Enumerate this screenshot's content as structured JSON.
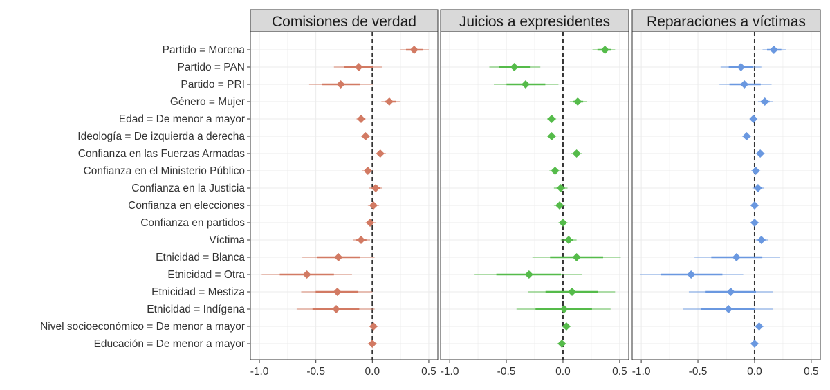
{
  "chart_data": {
    "type": "scatter",
    "subtype": "coefficient-plot-facetted",
    "title": "",
    "xlabel": "",
    "ylabel": "",
    "xlim": [
      -1.08,
      0.58
    ],
    "xticks": [
      -1.0,
      -0.5,
      0.0,
      0.5
    ],
    "xtick_labels": [
      "-1.0",
      "-0.5",
      "0.0",
      "0.5"
    ],
    "reference_line": 0,
    "grid": true,
    "categories": [
      "Partido = Morena",
      "Partido = PAN",
      "Partido = PRI",
      "Género = Mujer",
      "Edad = De menor a mayor",
      "Ideología = De izquierda a derecha",
      "Confianza en las Fuerzas Armadas",
      "Confianza en el Ministerio Público",
      "Confianza en la Justicia",
      "Confianza en elecciones",
      "Confianza en partidos",
      "Víctima",
      "Etnicidad = Blanca",
      "Etnicidad = Otra",
      "Etnicidad = Mestiza",
      "Etnicidad = Indígena",
      "Nivel socioeconómico  = De menor a mayor",
      "Educación = De menor a mayor"
    ],
    "value_format": "[estimate, ci_low, ci_high]",
    "facets": [
      {
        "name": "Comisiones de verdad",
        "color": "#D27A63",
        "values": [
          [
            0.37,
            0.25,
            0.5
          ],
          [
            -0.12,
            -0.34,
            0.09
          ],
          [
            -0.28,
            -0.56,
            0.01
          ],
          [
            0.15,
            0.08,
            0.25
          ],
          [
            -0.1,
            -0.14,
            -0.06
          ],
          [
            -0.06,
            -0.1,
            -0.02
          ],
          [
            0.07,
            0.03,
            0.12
          ],
          [
            -0.04,
            -0.09,
            0.01
          ],
          [
            0.03,
            -0.03,
            0.09
          ],
          [
            0.01,
            -0.04,
            0.06
          ],
          [
            -0.02,
            -0.06,
            0.03
          ],
          [
            -0.1,
            -0.17,
            -0.02
          ],
          [
            -0.3,
            -0.62,
            0.02
          ],
          [
            -0.58,
            -0.98,
            -0.18
          ],
          [
            -0.31,
            -0.63,
            0.0
          ],
          [
            -0.32,
            -0.67,
            0.02
          ],
          [
            0.01,
            -0.03,
            0.05
          ],
          [
            0.0,
            -0.04,
            0.04
          ]
        ]
      },
      {
        "name": "Juicios a expresidentes",
        "color": "#55BB4A",
        "values": [
          [
            0.37,
            0.26,
            0.46
          ],
          [
            -0.43,
            -0.65,
            -0.2
          ],
          [
            -0.33,
            -0.61,
            -0.04
          ],
          [
            0.13,
            0.06,
            0.21
          ],
          [
            -0.1,
            -0.14,
            -0.06
          ],
          [
            -0.1,
            -0.14,
            -0.06
          ],
          [
            0.12,
            0.07,
            0.17
          ],
          [
            -0.07,
            -0.12,
            -0.02
          ],
          [
            -0.02,
            -0.08,
            0.04
          ],
          [
            -0.03,
            -0.08,
            0.02
          ],
          [
            0.0,
            -0.04,
            0.04
          ],
          [
            0.05,
            -0.02,
            0.12
          ],
          [
            0.12,
            -0.27,
            0.51
          ],
          [
            -0.3,
            -0.78,
            0.17
          ],
          [
            0.08,
            -0.31,
            0.46
          ],
          [
            0.01,
            -0.41,
            0.42
          ],
          [
            0.03,
            -0.01,
            0.07
          ],
          [
            -0.01,
            -0.05,
            0.03
          ]
        ]
      },
      {
        "name": "Reparaciones a víctimas",
        "color": "#6A98E0",
        "values": [
          [
            0.17,
            0.07,
            0.28
          ],
          [
            -0.12,
            -0.3,
            0.06
          ],
          [
            -0.09,
            -0.31,
            0.15
          ],
          [
            0.09,
            0.03,
            0.16
          ],
          [
            -0.01,
            -0.04,
            0.02
          ],
          [
            -0.07,
            -0.11,
            -0.03
          ],
          [
            0.05,
            0.01,
            0.09
          ],
          [
            0.01,
            -0.03,
            0.05
          ],
          [
            0.03,
            -0.02,
            0.08
          ],
          [
            0.0,
            -0.04,
            0.04
          ],
          [
            0.0,
            -0.04,
            0.04
          ],
          [
            0.06,
            0.01,
            0.12
          ],
          [
            -0.16,
            -0.53,
            0.22
          ],
          [
            -0.56,
            -1.01,
            -0.1
          ],
          [
            -0.21,
            -0.58,
            0.16
          ],
          [
            -0.23,
            -0.63,
            0.16
          ],
          [
            0.04,
            0.0,
            0.08
          ],
          [
            0.0,
            -0.03,
            0.03
          ]
        ]
      }
    ]
  }
}
